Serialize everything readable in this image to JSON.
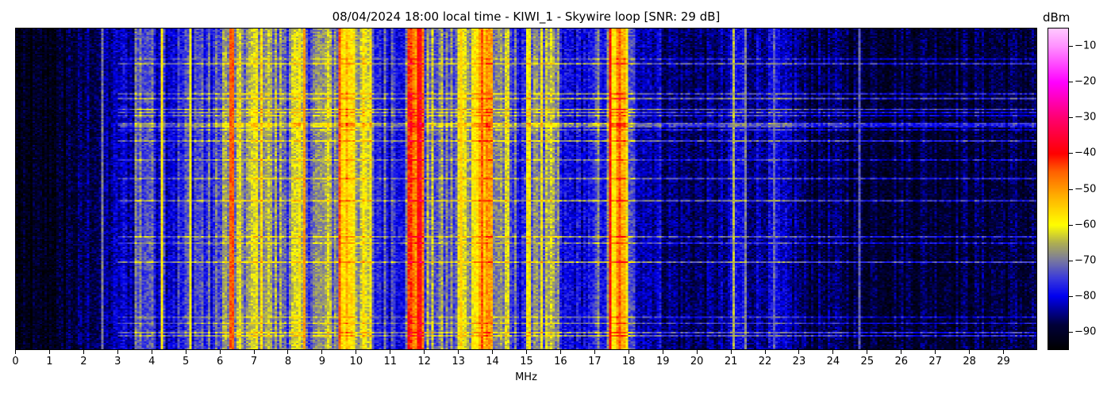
{
  "chart_data": {
    "type": "heatmap",
    "title": "08/04/2024 18:00 local time - KIWI_1 - Skywire loop [SNR: 29 dB]",
    "xlabel": "MHz",
    "ylabel": "",
    "xlim": [
      0,
      30
    ],
    "x_ticks": [
      "0",
      "1",
      "2",
      "3",
      "4",
      "5",
      "6",
      "7",
      "8",
      "9",
      "10",
      "11",
      "12",
      "13",
      "14",
      "15",
      "16",
      "17",
      "18",
      "19",
      "20",
      "21",
      "22",
      "23",
      "24",
      "25",
      "26",
      "27",
      "28",
      "29"
    ],
    "colorbar": {
      "label": "dBm",
      "range": [
        -95,
        -5
      ],
      "ticks": [
        "-10",
        "-20",
        "-30",
        "-40",
        "-50",
        "-60",
        "-70",
        "-80",
        "-90"
      ],
      "colormap_stops": [
        {
          "v": -95,
          "c": "#000000"
        },
        {
          "v": -88,
          "c": "#00003a"
        },
        {
          "v": -80,
          "c": "#0000f0"
        },
        {
          "v": -75,
          "c": "#3a3adc"
        },
        {
          "v": -70,
          "c": "#7878a0"
        },
        {
          "v": -65,
          "c": "#b0b050"
        },
        {
          "v": -60,
          "c": "#ffff00"
        },
        {
          "v": -52,
          "c": "#ffb000"
        },
        {
          "v": -45,
          "c": "#ff6000"
        },
        {
          "v": -40,
          "c": "#ff0000"
        },
        {
          "v": -30,
          "c": "#ff0070"
        },
        {
          "v": -20,
          "c": "#ff00ff"
        },
        {
          "v": -10,
          "c": "#ff90ff"
        },
        {
          "v": -5,
          "c": "#ffc8ff"
        }
      ]
    },
    "mean_level_per_half_mhz_dbm": [
      -93,
      -92,
      -91,
      -88,
      -86,
      -84,
      -82,
      -72,
      -77,
      -78,
      -74,
      -76,
      -68,
      -68,
      -63,
      -70,
      -66,
      -70,
      -68,
      -55,
      -64,
      -76,
      -74,
      -45,
      -70,
      -72,
      -64,
      -52,
      -68,
      -75,
      -66,
      -70,
      -80,
      -80,
      -74,
      -55,
      -78,
      -82,
      -85,
      -86,
      -86,
      -85,
      -80,
      -83,
      -82,
      -84,
      -87,
      -87,
      -87,
      -88,
      -88,
      -88,
      -88,
      -88,
      -88,
      -88,
      -88,
      -88,
      -88,
      -88
    ],
    "carriers": [
      {
        "mhz": 2.55,
        "dbm": -70
      },
      {
        "mhz": 4.3,
        "dbm": -58
      },
      {
        "mhz": 5.15,
        "dbm": -60
      },
      {
        "mhz": 6.35,
        "dbm": -45
      },
      {
        "mhz": 8.45,
        "dbm": -50
      },
      {
        "mhz": 9.5,
        "dbm": -45
      },
      {
        "mhz": 11.8,
        "dbm": -40
      },
      {
        "mhz": 13.1,
        "dbm": -55
      },
      {
        "mhz": 13.7,
        "dbm": -45
      },
      {
        "mhz": 17.5,
        "dbm": -40
      },
      {
        "mhz": 17.75,
        "dbm": -45
      },
      {
        "mhz": 21.1,
        "dbm": -65
      },
      {
        "mhz": 21.45,
        "dbm": -70
      },
      {
        "mhz": 22.3,
        "dbm": -72
      },
      {
        "mhz": 24.8,
        "dbm": -72
      }
    ]
  }
}
